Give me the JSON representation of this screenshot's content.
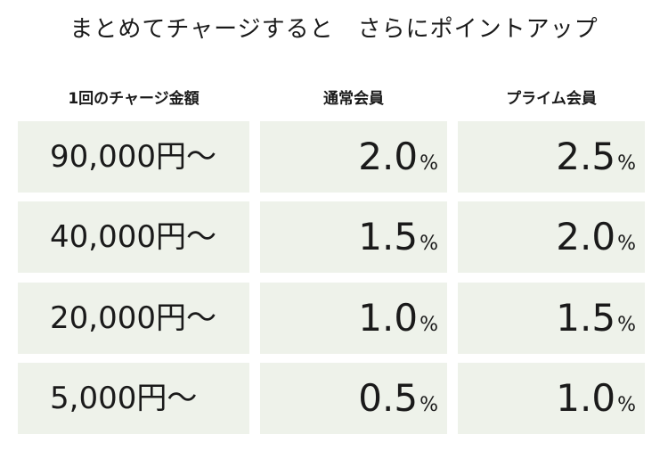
{
  "title": "まとめてチャージすると　さらにポイントアップ",
  "headers": {
    "amount": "1回のチャージ金額",
    "regular": "通常会員",
    "prime": "プライム会員"
  },
  "percent_sign": "%",
  "rows": [
    {
      "amount": "90,000円〜",
      "regular": "2.0",
      "prime": "2.5"
    },
    {
      "amount": "40,000円〜",
      "regular": "1.5",
      "prime": "2.0"
    },
    {
      "amount": "20,000円〜",
      "regular": "1.0",
      "prime": "1.5"
    },
    {
      "amount": "5,000円〜",
      "regular": "0.5",
      "prime": "1.0"
    }
  ]
}
